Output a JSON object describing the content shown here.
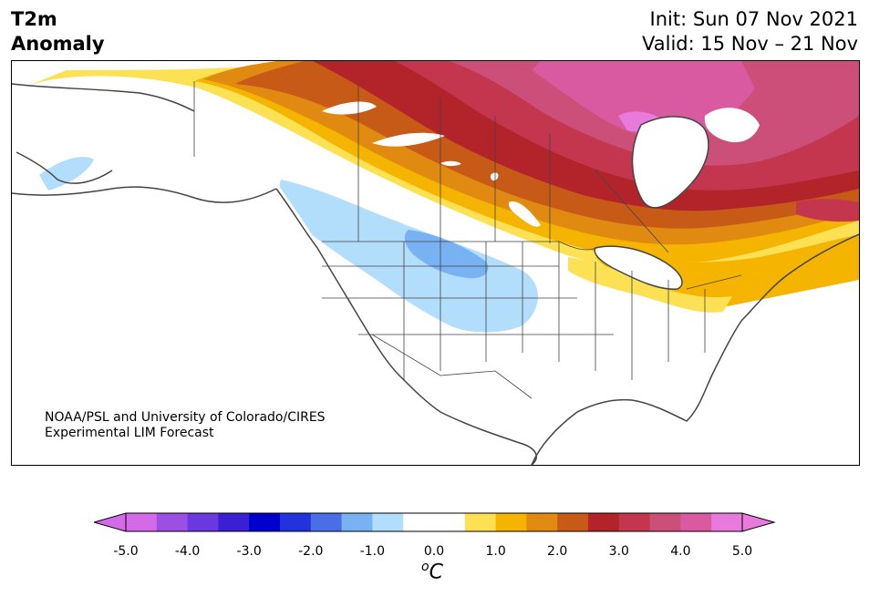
{
  "header": {
    "variable": "T2m",
    "field": "Anomaly",
    "init": "Init: Sun 07 Nov 2021",
    "valid": "Valid: 15 Nov – 21 Nov"
  },
  "credit": {
    "line1": "NOAA/PSL and University of Colorado/CIRES",
    "line2": "Experimental LIM Forecast"
  },
  "colorbar": {
    "min": -5.0,
    "max": 5.0,
    "step": 0.5,
    "colors": [
      "#d36be9",
      "#9b50e3",
      "#6a38de",
      "#3a1fd3",
      "#0000cc",
      "#2233dd",
      "#4a6ee6",
      "#79b2f3",
      "#b2ddfb",
      "#ffffff",
      "#ffffff",
      "#fde154",
      "#f4b400",
      "#e08a12",
      "#c85a17",
      "#b3242a",
      "#c3364e",
      "#cc4f79",
      "#d95aa0",
      "#e87adc"
    ],
    "ticks": [
      "-5.0",
      "-4.0",
      "-3.0",
      "-2.0",
      "-1.0",
      "0.0",
      "1.0",
      "2.0",
      "3.0",
      "4.0",
      "5.0"
    ],
    "units_base": "C",
    "units_sup": "o"
  },
  "map": {
    "region": "North America",
    "field_colors": {
      "warm_1": "#fde154",
      "warm_15": "#f4b400",
      "warm_2": "#e08a12",
      "warm_25": "#c85a17",
      "warm_3": "#b3242a",
      "warm_35": "#c3364e",
      "warm_4": "#cc4f79",
      "warm_45": "#d95aa0",
      "warm_5": "#e87adc",
      "cool_1": "#b2ddfb",
      "cool_15": "#79b2f3",
      "coast": "#444444"
    }
  }
}
